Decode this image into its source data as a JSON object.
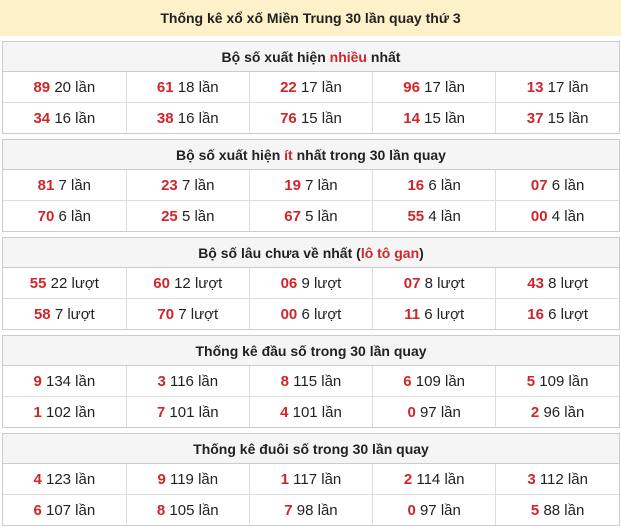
{
  "title": "Thống kê xổ xố Miền Trung 30 lần quay thứ 3",
  "colors": {
    "accent": "#d0262b",
    "title_bg": "#fcf1c8"
  },
  "sections": [
    {
      "head_pre": "Bộ số xuất hiện ",
      "head_hl": "nhiều",
      "head_post": " nhất",
      "rows": [
        [
          [
            "89",
            "20 lần"
          ],
          [
            "61",
            "18 lần"
          ],
          [
            "22",
            "17 lần"
          ],
          [
            "96",
            "17 lần"
          ],
          [
            "13",
            "17 lần"
          ]
        ],
        [
          [
            "34",
            "16 lần"
          ],
          [
            "38",
            "16 lần"
          ],
          [
            "76",
            "15 lần"
          ],
          [
            "14",
            "15 lần"
          ],
          [
            "37",
            "15 lần"
          ]
        ]
      ]
    },
    {
      "head_pre": "Bộ số xuất hiện ",
      "head_hl": "ít",
      "head_post": " nhất trong 30 lần quay",
      "rows": [
        [
          [
            "81",
            "7 lần"
          ],
          [
            "23",
            "7 lần"
          ],
          [
            "19",
            "7 lần"
          ],
          [
            "16",
            "6 lần"
          ],
          [
            "07",
            "6 lần"
          ]
        ],
        [
          [
            "70",
            "6 lần"
          ],
          [
            "25",
            "5 lần"
          ],
          [
            "67",
            "5 lần"
          ],
          [
            "55",
            "4 lần"
          ],
          [
            "00",
            "4 lần"
          ]
        ]
      ]
    },
    {
      "head_pre": "Bộ số lâu chưa về nhất (",
      "head_hl": "lô tô gan",
      "head_post": ")",
      "rows": [
        [
          [
            "55",
            "22 lượt"
          ],
          [
            "60",
            "12 lượt"
          ],
          [
            "06",
            "9 lượt"
          ],
          [
            "07",
            "8 lượt"
          ],
          [
            "43",
            "8 lượt"
          ]
        ],
        [
          [
            "58",
            "7 lượt"
          ],
          [
            "70",
            "7 lượt"
          ],
          [
            "00",
            "6 lượt"
          ],
          [
            "11",
            "6 lượt"
          ],
          [
            "16",
            "6 lượt"
          ]
        ]
      ]
    },
    {
      "head_pre": "Thống kê đầu số trong 30 lần quay",
      "head_hl": "",
      "head_post": "",
      "rows": [
        [
          [
            "9",
            "134 lần"
          ],
          [
            "3",
            "116 lần"
          ],
          [
            "8",
            "115 lần"
          ],
          [
            "6",
            "109 lần"
          ],
          [
            "5",
            "109 lần"
          ]
        ],
        [
          [
            "1",
            "102 lần"
          ],
          [
            "7",
            "101 lần"
          ],
          [
            "4",
            "101 lần"
          ],
          [
            "0",
            "97 lần"
          ],
          [
            "2",
            "96 lần"
          ]
        ]
      ]
    },
    {
      "head_pre": "Thống kê đuôi số trong 30 lần quay",
      "head_hl": "",
      "head_post": "",
      "rows": [
        [
          [
            "4",
            "123 lần"
          ],
          [
            "9",
            "119 lần"
          ],
          [
            "1",
            "117 lần"
          ],
          [
            "2",
            "114 lần"
          ],
          [
            "3",
            "112 lần"
          ]
        ],
        [
          [
            "6",
            "107 lần"
          ],
          [
            "8",
            "105 lần"
          ],
          [
            "7",
            "98 lần"
          ],
          [
            "0",
            "97 lần"
          ],
          [
            "5",
            "88 lần"
          ]
        ]
      ]
    }
  ]
}
